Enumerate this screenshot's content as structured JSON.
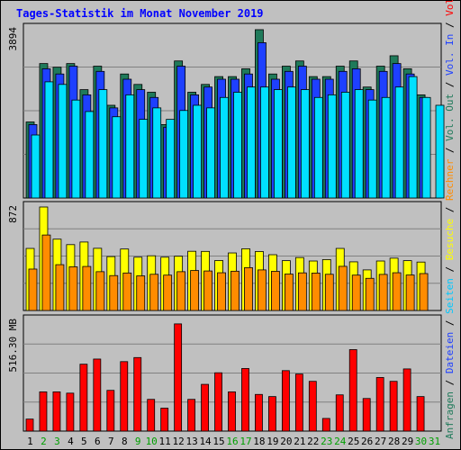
{
  "chart_data": {
    "type": "bar",
    "title": "Tages-Statistik im Monat November 2019",
    "days": [
      {
        "label": "1",
        "weekend": false
      },
      {
        "label": "2",
        "weekend": true
      },
      {
        "label": "3",
        "weekend": true
      },
      {
        "label": "4",
        "weekend": false
      },
      {
        "label": "5",
        "weekend": false
      },
      {
        "label": "6",
        "weekend": false
      },
      {
        "label": "7",
        "weekend": false
      },
      {
        "label": "8",
        "weekend": false
      },
      {
        "label": "9",
        "weekend": true
      },
      {
        "label": "10",
        "weekend": true
      },
      {
        "label": "11",
        "weekend": false
      },
      {
        "label": "12",
        "weekend": false
      },
      {
        "label": "13",
        "weekend": false
      },
      {
        "label": "14",
        "weekend": false
      },
      {
        "label": "15",
        "weekend": false
      },
      {
        "label": "16",
        "weekend": true
      },
      {
        "label": "17",
        "weekend": true
      },
      {
        "label": "18",
        "weekend": false
      },
      {
        "label": "19",
        "weekend": false
      },
      {
        "label": "20",
        "weekend": false
      },
      {
        "label": "21",
        "weekend": false
      },
      {
        "label": "22",
        "weekend": false
      },
      {
        "label": "23",
        "weekend": true
      },
      {
        "label": "24",
        "weekend": true
      },
      {
        "label": "25",
        "weekend": false
      },
      {
        "label": "26",
        "weekend": false
      },
      {
        "label": "27",
        "weekend": false
      },
      {
        "label": "28",
        "weekend": false
      },
      {
        "label": "29",
        "weekend": false
      },
      {
        "label": "30",
        "weekend": true
      },
      {
        "label": "31",
        "weekend": true
      }
    ],
    "panels": [
      {
        "id": "top",
        "max_label": "3894",
        "ymax": 3894,
        "series": [
          {
            "name": "Anfragen",
            "color": "#1f7a5a",
            "values": [
              1750,
              3094,
              3010,
              3094,
              2494,
              3034,
              2134,
              2854,
              2614,
              2434,
              1690,
              3154,
              2434,
              2614,
              2794,
              2794,
              2974,
              3874,
              2854,
              3034,
              3154,
              2794,
              2794,
              3034,
              3154,
              2554,
              3034,
              3274,
              2974,
              2374,
              0
            ]
          },
          {
            "name": "Dateien",
            "color": "#1e40ff",
            "values": [
              1690,
              2974,
              2854,
              3034,
              2374,
              2914,
              2074,
              2734,
              2494,
              2314,
              1630,
              3034,
              2374,
              2554,
              2734,
              2734,
              2854,
              3574,
              2734,
              2914,
              3034,
              2734,
              2734,
              2914,
              2974,
              2494,
              2914,
              3094,
              2854,
              2314,
              0
            ]
          },
          {
            "name": "Seiten",
            "color": "#00e0ff",
            "values": [
              1450,
              2674,
              2614,
              2254,
              1990,
              2494,
              1870,
              2374,
              1810,
              2074,
              1810,
              2014,
              2134,
              2074,
              2314,
              2434,
              2554,
              2554,
              2494,
              2554,
              2494,
              2314,
              2374,
              2434,
              2494,
              2254,
              2314,
              2554,
              2794,
              2314,
              2134
            ]
          }
        ]
      },
      {
        "id": "middle",
        "max_label": "872",
        "ymax": 872,
        "series": [
          {
            "name": "Besuche",
            "color": "#ffff00",
            "values": [
              523,
              872,
              601,
              555,
              577,
              524,
              454,
              518,
              449,
              461,
              449,
              457,
              499,
              498,
              421,
              485,
              520,
              497,
              470,
              420,
              446,
              417,
              429,
              523,
              410,
              342,
              417,
              441,
              420,
              408,
              0
            ]
          },
          {
            "name": "Rechner",
            "color": "#ff8c00",
            "values": [
              349,
              636,
              386,
              368,
              371,
              327,
              294,
              316,
              292,
              305,
              298,
              327,
              337,
              333,
              318,
              331,
              361,
              342,
              330,
              307,
              317,
              315,
              305,
              372,
              298,
              271,
              304,
              318,
              299,
              311,
              0
            ]
          }
        ]
      },
      {
        "id": "bottom",
        "max_label": "516.30 MB",
        "ymax": 516.3,
        "series": [
          {
            "name": "Volumen",
            "color": "#ff0000",
            "values": [
              56,
              183,
              183,
              177,
              312,
              336,
              190,
              324,
              343,
              148,
              107,
              500,
              148,
              218,
              272,
              183,
              292,
              171,
              161,
              282,
              266,
              232,
              59,
              169,
              380,
              152,
              250,
              232,
              290,
              161,
              0
            ]
          }
        ]
      }
    ],
    "legend_right": [
      {
        "text": "Anfragen",
        "color": "#1f7a5a"
      },
      {
        "text": " / ",
        "color": "#000000"
      },
      {
        "text": "Dateien",
        "color": "#1e40ff"
      },
      {
        "text": " / ",
        "color": "#000000"
      },
      {
        "text": "Seiten",
        "color": "#00c8ff"
      },
      {
        "text": " / ",
        "color": "#000000"
      },
      {
        "text": "Besuche",
        "color": "#ffff00"
      },
      {
        "text": " / ",
        "color": "#000000"
      },
      {
        "text": "Rechner",
        "color": "#ff8c00"
      },
      {
        "text": " / ",
        "color": "#000000"
      },
      {
        "text": "Vol. Out",
        "color": "#1f7a5a"
      },
      {
        "text": " / ",
        "color": "#000000"
      },
      {
        "text": "Vol. In",
        "color": "#1e40ff"
      },
      {
        "text": " / ",
        "color": "#000000"
      },
      {
        "text": "Volumen",
        "color": "#ff0000"
      }
    ],
    "colors": {
      "background": "#c0c0c0",
      "plot": "#c0c0c0",
      "grid": "#808080",
      "weekday_label": "#000000",
      "weekend_label": "#00a000"
    }
  }
}
